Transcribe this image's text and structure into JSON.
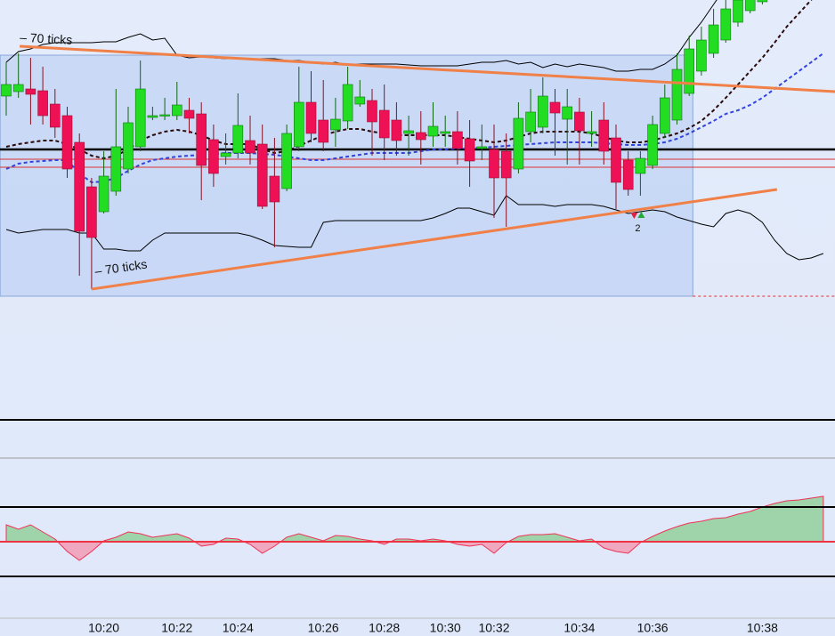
{
  "chart_data": [
    {
      "type": "candlestick",
      "ylim": [
        -72,
        400
      ],
      "up_color": "#22dd22",
      "down_color": "#ee1155",
      "open": [
        292,
        297,
        300,
        298,
        283,
        270,
        240,
        190,
        162,
        185,
        210,
        235,
        268,
        270,
        270,
        276,
        272,
        243,
        224,
        228,
        242,
        238,
        202,
        188,
        235,
        285,
        265,
        254,
        264,
        283,
        287,
        276,
        265,
        250,
        251,
        247,
        250,
        252,
        244,
        233,
        232,
        230,
        210,
        252,
        257,
        285,
        266,
        274,
        250,
        265,
        245,
        220,
        205,
        214,
        250,
        265,
        295,
        320,
        340,
        355,
        375,
        388,
        398,
        null,
        null,
        null,
        null,
        null
      ],
      "high": [
        330,
        340,
        335,
        325,
        300,
        280,
        250,
        200,
        230,
        300,
        280,
        332,
        280,
        290,
        308,
        290,
        285,
        260,
        250,
        295,
        270,
        260,
        245,
        260,
        325,
        320,
        310,
        290,
        325,
        310,
        300,
        305,
        285,
        270,
        275,
        285,
        270,
        275,
        265,
        260,
        260,
        250,
        285,
        300,
        313,
        300,
        300,
        290,
        275,
        285,
        260,
        230,
        230,
        270,
        305,
        340,
        360,
        370,
        390,
        400,
        410,
        420,
        430,
        null,
        null,
        null,
        null,
        null
      ],
      "low": [
        270,
        290,
        260,
        260,
        245,
        200,
        90,
        75,
        160,
        180,
        205,
        230,
        265,
        265,
        265,
        250,
        175,
        190,
        215,
        222,
        215,
        165,
        122,
        185,
        230,
        240,
        230,
        235,
        255,
        280,
        225,
        220,
        225,
        225,
        215,
        235,
        235,
        215,
        190,
        220,
        155,
        145,
        205,
        240,
        250,
        225,
        215,
        215,
        235,
        215,
        165,
        180,
        180,
        210,
        245,
        260,
        292,
        315,
        335,
        352,
        370,
        385,
        395,
        null,
        null,
        null,
        null,
        null
      ],
      "close": [
        305,
        305,
        294,
        270,
        257,
        210,
        140,
        133,
        202,
        235,
        262,
        300,
        270,
        271,
        282,
        267,
        214,
        205,
        228,
        259,
        228,
        168,
        173,
        250,
        285,
        250,
        240,
        266,
        305,
        291,
        263,
        245,
        242,
        253,
        243,
        258,
        252,
        233,
        219,
        235,
        200,
        200,
        267,
        274,
        292,
        273,
        280,
        253,
        252,
        230,
        195,
        187,
        222,
        260,
        290,
        322,
        345,
        355,
        372,
        390,
        400,
        410,
        420,
        null,
        null,
        null,
        null,
        null
      ],
      "overlays": [
        {
          "color": "#000000",
          "style": "solid",
          "values": [
            330,
            342,
            345,
            350,
            352,
            352,
            352,
            352,
            353,
            353,
            358,
            362,
            355,
            357,
            338,
            335,
            336,
            335,
            334,
            334,
            334,
            334,
            334,
            332,
            332,
            330,
            328,
            330,
            327,
            328,
            328,
            328,
            328,
            327,
            326,
            326,
            326,
            326,
            328,
            330,
            330,
            332,
            328,
            330,
            324,
            328,
            325,
            328,
            326,
            324,
            320,
            320,
            322,
            322,
            328,
            338,
            358,
            375,
            395,
            415,
            435,
            455,
            475,
            495,
            515,
            535,
            555,
            575
          ]
        },
        {
          "color": "#000000",
          "style": "solid",
          "values": [
            142,
            138,
            140,
            142,
            142,
            142,
            138,
            138,
            120,
            120,
            118,
            118,
            130,
            138,
            138,
            138,
            138,
            138,
            138,
            138,
            135,
            130,
            124,
            123,
            122,
            122,
            150,
            152,
            152,
            152,
            152,
            152,
            152,
            152,
            152,
            155,
            160,
            166,
            166,
            162,
            158,
            180,
            170,
            170,
            170,
            168,
            170,
            170,
            170,
            168,
            164,
            160,
            162,
            164,
            162,
            156,
            152,
            148,
            145,
            160,
            164,
            160,
            150,
            130,
            115,
            108,
            110,
            115
          ]
        },
        {
          "color": "#3344dd",
          "style": "dashed",
          "values": [
            210,
            216,
            218,
            219,
            220,
            220,
            205,
            195,
            196,
            200,
            208,
            215,
            220,
            222,
            224,
            225,
            226,
            227,
            228,
            228,
            228,
            227,
            226,
            224,
            222,
            220,
            220,
            222,
            224,
            226,
            228,
            228,
            228,
            228,
            230,
            232,
            232,
            233,
            233,
            234,
            235,
            236,
            237,
            238,
            239,
            240,
            240,
            240,
            240,
            239,
            238,
            237,
            237,
            238,
            240,
            244,
            250,
            257,
            264,
            272,
            276,
            282,
            290,
            300,
            310,
            320,
            330,
            340
          ]
        },
        {
          "color": "#2a0a0a",
          "style": "dashed",
          "values": [
            235,
            238,
            240,
            242,
            242,
            238,
            232,
            225,
            222,
            225,
            232,
            242,
            248,
            252,
            254,
            252,
            248,
            242,
            238,
            238,
            238,
            232,
            228,
            230,
            236,
            242,
            248,
            252,
            255,
            255,
            252,
            250,
            248,
            248,
            248,
            248,
            248,
            246,
            244,
            242,
            240,
            242,
            246,
            250,
            252,
            252,
            252,
            252,
            250,
            246,
            242,
            240,
            240,
            242,
            246,
            250,
            256,
            264,
            276,
            290,
            305,
            320,
            335,
            352,
            370,
            385,
            400,
            415
          ]
        }
      ],
      "levels": [
        {
          "value": 232,
          "color": "#000000"
        },
        {
          "value": 221,
          "color": "#dd3333"
        },
        {
          "value": 212,
          "color": "#dd3333"
        }
      ],
      "box": {
        "x": [
          -0.5,
          56.3
        ],
        "values": [
          67,
          338
        ],
        "color": "#a8c4f0"
      },
      "dashed_level": {
        "x": [
          56.3,
          68
        ],
        "value": 67,
        "color": "#dd3333"
      },
      "trendlines": [
        {
          "x": [
            1.1,
            68
          ],
          "values": [
            348,
            297
          ],
          "color": "#f08048"
        },
        {
          "x": [
            7,
            63.2
          ],
          "values": [
            75,
            187
          ],
          "color": "#f08048"
        }
      ],
      "annotations": [
        {
          "text": "– 70 ticks",
          "x": 1.1,
          "value": 355
        },
        {
          "text": "– 70 ticks",
          "x": 7.3,
          "value": 92
        }
      ],
      "signals": [
        {
          "x": 52,
          "value": 160,
          "label": "2"
        }
      ]
    },
    {
      "type": "area",
      "ylim": [
        -86,
        137
      ],
      "categories": [
        null,
        null,
        null,
        null,
        null,
        null,
        null,
        null,
        "10:20",
        null,
        null,
        null,
        null,
        null,
        "10:22",
        null,
        null,
        null,
        null,
        "10:24",
        null,
        null,
        null,
        null,
        null,
        null,
        "10:26",
        null,
        null,
        null,
        null,
        "10:28",
        null,
        null,
        null,
        null,
        "10:30",
        null,
        null,
        null,
        "10:32",
        null,
        null,
        null,
        null,
        null,
        null,
        "10:34",
        null,
        null,
        null,
        null,
        null,
        "10:36",
        null,
        null,
        null,
        null,
        null,
        null,
        null,
        null,
        "10:38",
        null,
        null,
        null,
        null,
        null
      ],
      "values": [
        19,
        14,
        19,
        11,
        3,
        -11,
        -21,
        -11,
        1,
        5,
        11,
        9,
        5,
        7,
        9,
        4,
        -5,
        -3,
        4,
        3,
        -3,
        -13,
        -5,
        5,
        9,
        5,
        1,
        7,
        6,
        3,
        1,
        -3,
        3,
        3,
        1,
        3,
        1,
        -3,
        -5,
        -3,
        -13,
        -1,
        6,
        8,
        8,
        9,
        5,
        1,
        3,
        -7,
        -11,
        -13,
        -1,
        6,
        12,
        17,
        21,
        23,
        26,
        27,
        31,
        34,
        39,
        43,
        46,
        47,
        49,
        51
      ],
      "pos_color": "#9fd4aa",
      "neg_color": "#f0a8c0",
      "line_color": "#ee3355",
      "levels": [
        {
          "value": 39,
          "color": "#000000"
        },
        {
          "value": -39,
          "color": "#000000"
        },
        {
          "value": 0,
          "color": "#ee3344"
        }
      ]
    }
  ]
}
